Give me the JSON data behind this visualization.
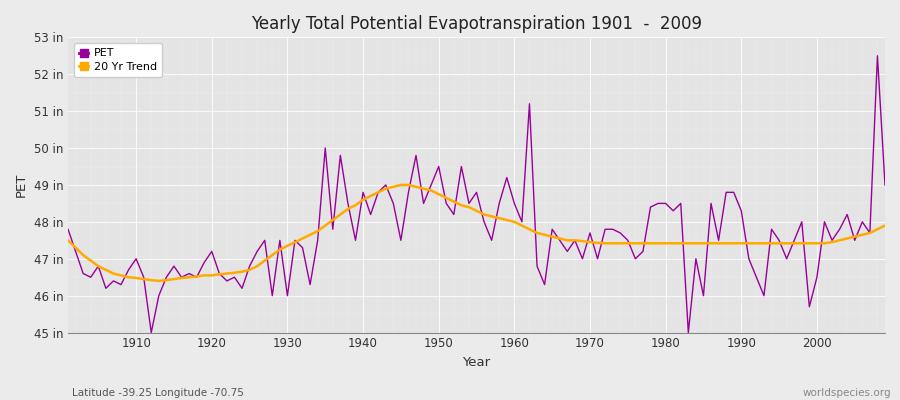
{
  "title": "Yearly Total Potential Evapotranspiration 1901  -  2009",
  "xlabel": "Year",
  "ylabel": "PET",
  "subtitle_left": "Latitude -39.25 Longitude -70.75",
  "subtitle_right": "worldspecies.org",
  "bg_color": "#e8e8e8",
  "plot_bg_color": "#e0e0e0",
  "pet_color": "#990099",
  "trend_color": "#ffaa00",
  "ylim": [
    45,
    53
  ],
  "ytick_labels": [
    "45 in",
    "46 in",
    "47 in",
    "48 in",
    "49 in",
    "50 in",
    "51 in",
    "52 in",
    "53 in"
  ],
  "ytick_values": [
    45,
    46,
    47,
    48,
    49,
    50,
    51,
    52,
    53
  ],
  "years": [
    1901,
    1902,
    1903,
    1904,
    1905,
    1906,
    1907,
    1908,
    1909,
    1910,
    1911,
    1912,
    1913,
    1914,
    1915,
    1916,
    1917,
    1918,
    1919,
    1920,
    1921,
    1922,
    1923,
    1924,
    1925,
    1926,
    1927,
    1928,
    1929,
    1930,
    1931,
    1932,
    1933,
    1934,
    1935,
    1936,
    1937,
    1938,
    1939,
    1940,
    1941,
    1942,
    1943,
    1944,
    1945,
    1946,
    1947,
    1948,
    1949,
    1950,
    1951,
    1952,
    1953,
    1954,
    1955,
    1956,
    1957,
    1958,
    1959,
    1960,
    1961,
    1962,
    1963,
    1964,
    1965,
    1966,
    1967,
    1968,
    1969,
    1970,
    1971,
    1972,
    1973,
    1974,
    1975,
    1976,
    1977,
    1978,
    1979,
    1980,
    1981,
    1982,
    1983,
    1984,
    1985,
    1986,
    1987,
    1988,
    1989,
    1990,
    1991,
    1992,
    1993,
    1994,
    1995,
    1996,
    1997,
    1998,
    1999,
    2000,
    2001,
    2002,
    2003,
    2004,
    2005,
    2006,
    2007,
    2008,
    2009
  ],
  "pet": [
    47.8,
    47.2,
    46.6,
    46.5,
    46.8,
    46.2,
    46.4,
    46.3,
    46.7,
    47.0,
    46.5,
    45.0,
    46.0,
    46.5,
    46.8,
    46.5,
    46.6,
    46.5,
    46.9,
    47.2,
    46.6,
    46.4,
    46.5,
    46.2,
    46.8,
    47.2,
    47.5,
    46.0,
    47.5,
    46.0,
    47.5,
    47.3,
    46.3,
    47.5,
    50.0,
    47.8,
    49.8,
    48.5,
    47.5,
    48.8,
    48.2,
    48.8,
    49.0,
    48.5,
    47.5,
    48.8,
    49.8,
    48.5,
    49.0,
    49.5,
    48.5,
    48.2,
    49.5,
    48.5,
    48.8,
    48.0,
    47.5,
    48.5,
    49.2,
    48.5,
    48.0,
    51.2,
    46.8,
    46.3,
    47.8,
    47.5,
    47.2,
    47.5,
    47.0,
    47.7,
    47.0,
    47.8,
    47.8,
    47.7,
    47.5,
    47.0,
    47.2,
    48.4,
    48.5,
    48.5,
    48.3,
    48.5,
    45.0,
    47.0,
    46.0,
    48.5,
    47.5,
    48.8,
    48.8,
    48.3,
    47.0,
    46.5,
    46.0,
    47.8,
    47.5,
    47.0,
    47.5,
    48.0,
    45.7,
    46.5,
    48.0,
    47.5,
    47.8,
    48.2,
    47.5,
    48.0,
    47.7,
    52.5,
    49.0
  ],
  "trend_years": [
    1901,
    1902,
    1903,
    1904,
    1905,
    1906,
    1907,
    1908,
    1909,
    1910,
    1911,
    1912,
    1913,
    1914,
    1915,
    1916,
    1917,
    1918,
    1919,
    1920,
    1921,
    1922,
    1923,
    1924,
    1925,
    1926,
    1927,
    1928,
    1929,
    1930,
    1931,
    1932,
    1933,
    1934,
    1935,
    1936,
    1937,
    1938,
    1939,
    1940,
    1941,
    1942,
    1943,
    1944,
    1945,
    1946,
    1947,
    1948,
    1949,
    1950,
    1951,
    1952,
    1953,
    1954,
    1955,
    1956,
    1957,
    1958,
    1959,
    1960,
    1961,
    1962,
    1963,
    1964,
    1965,
    1966,
    1967,
    1968,
    1969,
    1970,
    1971,
    1972,
    1973,
    1974,
    1975,
    1976,
    1977,
    1978,
    1979,
    1980,
    1981,
    1982,
    1983,
    1984,
    1985,
    1986,
    1987,
    1988,
    1989,
    1990,
    1991,
    1992,
    1993,
    1994,
    1995,
    1996,
    1997,
    1998,
    1999,
    2000,
    2001,
    2002,
    2003,
    2004,
    2005,
    2006,
    2007,
    2008,
    2009
  ],
  "trend": [
    47.5,
    47.3,
    47.1,
    46.95,
    46.8,
    46.7,
    46.6,
    46.55,
    46.5,
    46.48,
    46.45,
    46.42,
    46.4,
    46.42,
    46.45,
    46.48,
    46.5,
    46.52,
    46.55,
    46.55,
    46.58,
    46.6,
    46.62,
    46.65,
    46.7,
    46.8,
    46.95,
    47.1,
    47.25,
    47.35,
    47.45,
    47.55,
    47.65,
    47.75,
    47.9,
    48.05,
    48.2,
    48.35,
    48.45,
    48.6,
    48.7,
    48.8,
    48.9,
    48.95,
    49.0,
    49.0,
    48.95,
    48.9,
    48.85,
    48.75,
    48.65,
    48.55,
    48.45,
    48.4,
    48.3,
    48.2,
    48.15,
    48.1,
    48.05,
    48.0,
    47.9,
    47.8,
    47.7,
    47.65,
    47.6,
    47.55,
    47.5,
    47.5,
    47.48,
    47.45,
    47.43,
    47.42,
    47.42,
    47.42,
    47.42,
    47.42,
    47.42,
    47.42,
    47.42,
    47.42,
    47.42,
    47.42,
    47.42,
    47.42,
    47.42,
    47.42,
    47.42,
    47.42,
    47.42,
    47.42,
    47.42,
    47.42,
    47.42,
    47.42,
    47.42,
    47.42,
    47.42,
    47.42,
    47.42,
    47.42,
    47.42,
    47.45,
    47.5,
    47.55,
    47.6,
    47.65,
    47.7,
    47.8,
    47.9
  ]
}
